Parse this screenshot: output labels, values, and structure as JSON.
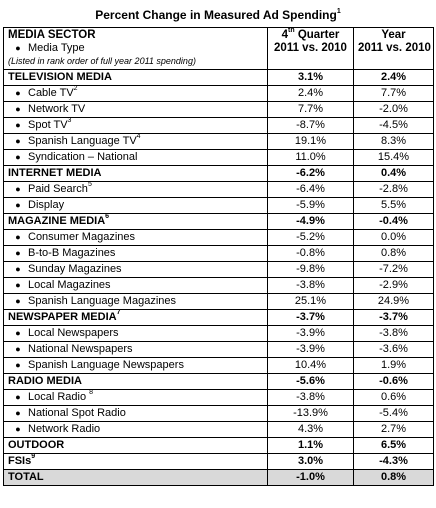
{
  "title": "Percent Change in Measured Ad Spending",
  "title_sup": "1",
  "header": {
    "sector": "MEDIA SECTOR",
    "media_type": "Media Type",
    "note": "(Listed in rank order of full year 2011 spending)",
    "col1_pre": "4",
    "col1_sup": "th",
    "col1_post": " Quarter",
    "col1_line2": "2011 vs. 2010",
    "col2_line1": "Year",
    "col2_line2": "2011 vs. 2010"
  },
  "rows": [
    {
      "type": "section",
      "label": "TELEVISION MEDIA",
      "sup": "",
      "q4": "3.1%",
      "year": "2.4%"
    },
    {
      "type": "item",
      "label": "Cable TV",
      "sup": "2",
      "q4": "2.4%",
      "year": "7.7%"
    },
    {
      "type": "item",
      "label": "Network TV",
      "sup": "",
      "q4": "7.7%",
      "year": "-2.0%"
    },
    {
      "type": "item",
      "label": "Spot TV",
      "sup": "3",
      "q4": "-8.7%",
      "year": "-4.5%"
    },
    {
      "type": "item",
      "label": "Spanish Language TV",
      "sup": "4",
      "q4": "19.1%",
      "year": "8.3%"
    },
    {
      "type": "item",
      "label": "Syndication – National",
      "sup": "",
      "q4": "11.0%",
      "year": "15.4%"
    },
    {
      "type": "section",
      "label": "INTERNET MEDIA",
      "sup": "",
      "q4": "-6.2%",
      "year": "0.4%"
    },
    {
      "type": "item",
      "label": "Paid Search",
      "sup": "5",
      "q4": "-6.4%",
      "year": "-2.8%"
    },
    {
      "type": "item",
      "label": "Display",
      "sup": "",
      "q4": "-5.9%",
      "year": "5.5%"
    },
    {
      "type": "section",
      "label": "MAGAZINE MEDIA",
      "sup": "6",
      "q4": "-4.9%",
      "year": "-0.4%"
    },
    {
      "type": "item",
      "label": "Consumer Magazines",
      "sup": "",
      "q4": "-5.2%",
      "year": "0.0%"
    },
    {
      "type": "item",
      "label": "B-to-B Magazines",
      "sup": "",
      "q4": "-0.8%",
      "year": "0.8%"
    },
    {
      "type": "item",
      "label": "Sunday Magazines",
      "sup": "",
      "q4": "-9.8%",
      "year": "-7.2%"
    },
    {
      "type": "item",
      "label": "Local Magazines",
      "sup": "",
      "q4": "-3.8%",
      "year": "-2.9%"
    },
    {
      "type": "item",
      "label": "Spanish Language Magazines",
      "sup": "",
      "q4": "25.1%",
      "year": "24.9%"
    },
    {
      "type": "section",
      "label": "NEWSPAPER MEDIA",
      "sup": "7",
      "q4": "-3.7%",
      "year": "-3.7%"
    },
    {
      "type": "item",
      "label": "Local Newspapers",
      "sup": "",
      "q4": "-3.9%",
      "year": "-3.8%"
    },
    {
      "type": "item",
      "label": "National Newspapers",
      "sup": "",
      "q4": "-3.9%",
      "year": "-3.6%"
    },
    {
      "type": "item",
      "label": "Spanish Language Newspapers",
      "sup": "",
      "q4": "10.4%",
      "year": "1.9%"
    },
    {
      "type": "section",
      "label": "RADIO MEDIA",
      "sup": "",
      "q4": "-5.6%",
      "year": "-0.6%"
    },
    {
      "type": "item",
      "label": "Local Radio ",
      "sup": "8",
      "q4": "-3.8%",
      "year": "0.6%"
    },
    {
      "type": "item",
      "label": "National Spot Radio",
      "sup": "",
      "q4": "-13.9%",
      "year": "-5.4%"
    },
    {
      "type": "item",
      "label": "Network Radio",
      "sup": "",
      "q4": "4.3%",
      "year": "2.7%"
    },
    {
      "type": "section",
      "label": "OUTDOOR",
      "sup": "",
      "q4": "1.1%",
      "year": "6.5%"
    },
    {
      "type": "section",
      "label": "FSIs",
      "sup": "9",
      "q4": "3.0%",
      "year": "-4.3%"
    },
    {
      "type": "total",
      "label": "TOTAL",
      "sup": "",
      "q4": "-1.0%",
      "year": "0.8%"
    }
  ]
}
